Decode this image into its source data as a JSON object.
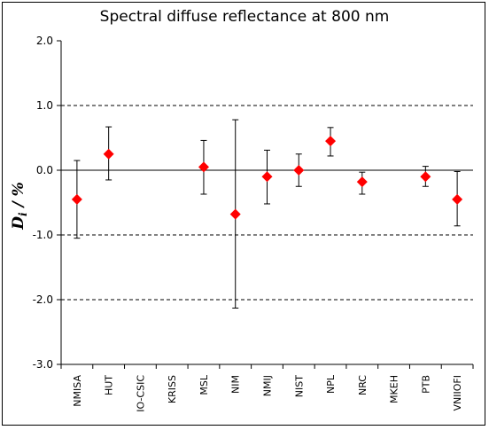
{
  "chart_data": {
    "type": "scatter",
    "title": "Spectral diffuse reflectance at 800 nm",
    "ylabel_main": "D",
    "ylabel_sub": "i",
    "ylabel_rest": " / %",
    "ylim": [
      -3.0,
      2.0
    ],
    "yticks": [
      2.0,
      1.0,
      0.0,
      -1.0,
      -2.0,
      -3.0
    ],
    "ytick_labels": [
      "2.0",
      "1.0",
      "0.0",
      "-1.0",
      "-2.0",
      "-3.0"
    ],
    "dashed_gridlines": [
      1.0,
      -1.0,
      -2.0
    ],
    "zero_line": 0.0,
    "categories": [
      "NMISA",
      "HUT",
      "IO-CSIC",
      "KRISS",
      "MSL",
      "NIM",
      "NMIJ",
      "NIST",
      "NPL",
      "NRC",
      "MKEH",
      "PTB",
      "VNIIOFI"
    ],
    "values": [
      -0.45,
      0.25,
      null,
      null,
      0.05,
      -0.68,
      -0.1,
      0.0,
      0.45,
      -0.18,
      null,
      -0.1,
      -0.45
    ],
    "error_low": [
      -1.05,
      -0.15,
      null,
      null,
      -0.37,
      -2.13,
      -0.52,
      -0.25,
      0.22,
      -0.37,
      null,
      -0.25,
      -0.86
    ],
    "error_high": [
      0.15,
      0.67,
      null,
      null,
      0.46,
      0.78,
      0.31,
      0.25,
      0.66,
      -0.03,
      null,
      0.06,
      -0.02
    ],
    "marker_color": "#ff0000",
    "marker_shape": "diamond",
    "errorbar_color": "#000000"
  }
}
